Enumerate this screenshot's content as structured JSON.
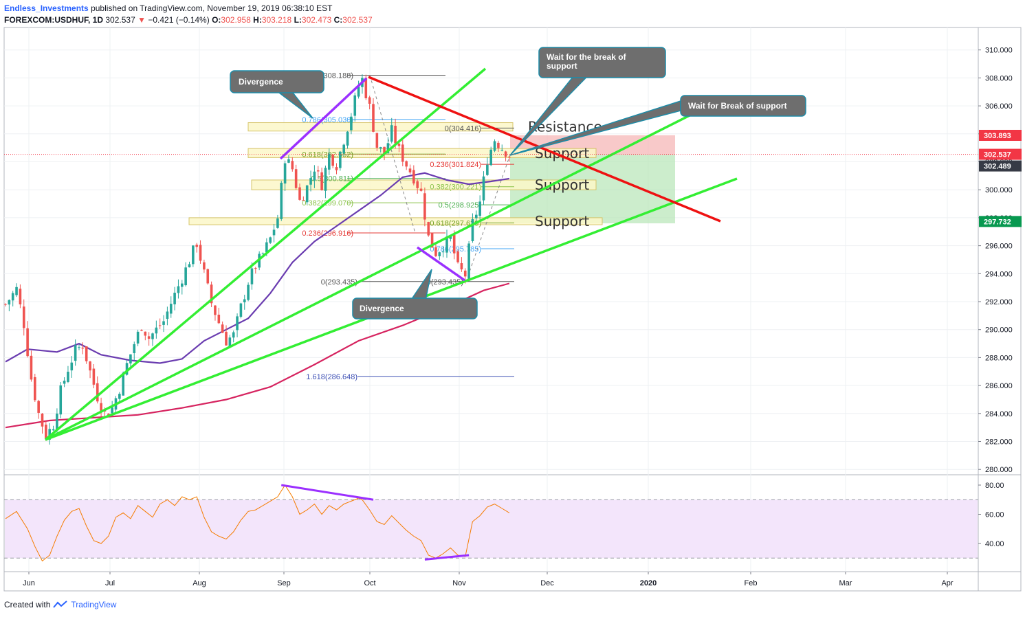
{
  "header": {
    "author": "Endless_Investments",
    "published": "published on TradingView.com, November 19, 2019 06:38:10 EST",
    "symbol": "FOREXCOM:USDHUF, 1D",
    "last": "302.537",
    "change": "−0.421 (−0.14%)",
    "o_label": "O:",
    "o": "302.958",
    "h_label": "H:",
    "h": "303.218",
    "l_label": "L:",
    "l": "302.473",
    "c_label": "C:",
    "c": "302.537"
  },
  "footer": {
    "created_with": "Created with",
    "brand": "TradingView"
  },
  "colors": {
    "up": "#26a69a",
    "down": "#ef5350",
    "trend_green": "#33ee33",
    "trend_red": "#ee1111",
    "ma_fast": "#6a3cb0",
    "ma_slow": "#d6235f",
    "divergence": "#9b30ff",
    "rsi": "#f57c00",
    "rsi_band": "#f3e5fb",
    "zone_fill": "#fbf7c8",
    "zone_border": "#d6c46a",
    "callout_fill": "#6e6e6e",
    "callout_border": "#1e8ca8"
  },
  "chart_data": {
    "type": "candlestick",
    "instrument": "FOREXCOM:USDHUF",
    "timeframe": "1D",
    "x_ticks": [
      "Jun",
      "Jul",
      "Aug",
      "Sep",
      "Oct",
      "Nov",
      "Dec",
      "2020",
      "Feb",
      "Mar",
      "Apr"
    ],
    "y_ticks": [
      "280.000",
      "282.000",
      "284.000",
      "286.000",
      "288.000",
      "290.000",
      "292.000",
      "294.000",
      "296.000",
      "298.000",
      "300.000",
      "302.000",
      "304.000",
      "306.000",
      "308.000",
      "310.000"
    ],
    "ylim": [
      279.6,
      311.4
    ],
    "price_tags": [
      {
        "value": 303.893,
        "text": "303.893",
        "color": "#f23645"
      },
      {
        "value": 302.537,
        "text": "302.537",
        "color": "#f23645"
      },
      {
        "value": 302.489,
        "text": "302.489",
        "color": "#363a45"
      },
      {
        "value": 297.732,
        "text": "297.732",
        "color": "#089950"
      }
    ],
    "close_path": [
      {
        "day": 0,
        "close": 291.8
      },
      {
        "day": 3,
        "close": 292.9
      },
      {
        "day": 5,
        "close": 290.4
      },
      {
        "day": 7,
        "close": 286.5
      },
      {
        "day": 9,
        "close": 284.0
      },
      {
        "day": 11,
        "close": 282.4
      },
      {
        "day": 13,
        "close": 283.2
      },
      {
        "day": 15,
        "close": 285.6
      },
      {
        "day": 17,
        "close": 287.2
      },
      {
        "day": 19,
        "close": 288.5
      },
      {
        "day": 21,
        "close": 288.9
      },
      {
        "day": 23,
        "close": 287.0
      },
      {
        "day": 25,
        "close": 285.2
      },
      {
        "day": 27,
        "close": 284.0
      },
      {
        "day": 29,
        "close": 284.4
      },
      {
        "day": 31,
        "close": 285.8
      },
      {
        "day": 33,
        "close": 287.5
      },
      {
        "day": 35,
        "close": 289.0
      },
      {
        "day": 37,
        "close": 290.3
      },
      {
        "day": 39,
        "close": 289.4
      },
      {
        "day": 41,
        "close": 290.0
      },
      {
        "day": 43,
        "close": 290.6
      },
      {
        "day": 45,
        "close": 291.9
      },
      {
        "day": 47,
        "close": 293.1
      },
      {
        "day": 49,
        "close": 294.3
      },
      {
        "day": 51,
        "close": 295.6
      },
      {
        "day": 52,
        "close": 296.2
      },
      {
        "day": 54,
        "close": 294.0
      },
      {
        "day": 56,
        "close": 291.9
      },
      {
        "day": 58,
        "close": 290.5
      },
      {
        "day": 60,
        "close": 289.2
      },
      {
        "day": 62,
        "close": 289.6
      },
      {
        "day": 64,
        "close": 291.6
      },
      {
        "day": 66,
        "close": 293.4
      },
      {
        "day": 68,
        "close": 294.6
      },
      {
        "day": 70,
        "close": 295.4
      },
      {
        "day": 72,
        "close": 296.5
      },
      {
        "day": 74,
        "close": 298.0
      },
      {
        "day": 76,
        "close": 302.3
      },
      {
        "day": 78,
        "close": 301.5
      },
      {
        "day": 80,
        "close": 299.2
      },
      {
        "day": 82,
        "close": 300.2
      },
      {
        "day": 84,
        "close": 301.6
      },
      {
        "day": 86,
        "close": 300.4
      },
      {
        "day": 88,
        "close": 302.5
      },
      {
        "day": 90,
        "close": 301.8
      },
      {
        "day": 92,
        "close": 303.6
      },
      {
        "day": 94,
        "close": 305.4
      },
      {
        "day": 96,
        "close": 307.4
      },
      {
        "day": 97,
        "close": 307.9
      },
      {
        "day": 99,
        "close": 305.9
      },
      {
        "day": 101,
        "close": 303.1
      },
      {
        "day": 103,
        "close": 302.6
      },
      {
        "day": 105,
        "close": 304.2
      },
      {
        "day": 107,
        "close": 302.8
      },
      {
        "day": 109,
        "close": 301.8
      },
      {
        "day": 111,
        "close": 300.9
      },
      {
        "day": 113,
        "close": 299.8
      },
      {
        "day": 115,
        "close": 296.6
      },
      {
        "day": 117,
        "close": 295.5
      },
      {
        "day": 119,
        "close": 296.0
      },
      {
        "day": 121,
        "close": 296.5
      },
      {
        "day": 123,
        "close": 294.4
      },
      {
        "day": 125,
        "close": 293.9
      },
      {
        "day": 127,
        "close": 297.6
      },
      {
        "day": 129,
        "close": 299.1
      },
      {
        "day": 131,
        "close": 302.2
      },
      {
        "day": 133,
        "close": 303.6
      },
      {
        "day": 135,
        "close": 303.0
      },
      {
        "day": 137,
        "close": 302.5
      }
    ],
    "moving_averages": [
      {
        "name": "MA fast",
        "points": [
          {
            "day": 0,
            "value": 287.7
          },
          {
            "day": 6,
            "value": 288.6
          },
          {
            "day": 14,
            "value": 288.4
          },
          {
            "day": 20,
            "value": 289.0
          },
          {
            "day": 26,
            "value": 288.2
          },
          {
            "day": 34,
            "value": 287.8
          },
          {
            "day": 42,
            "value": 287.6
          },
          {
            "day": 48,
            "value": 287.9
          },
          {
            "day": 54,
            "value": 289.2
          },
          {
            "day": 60,
            "value": 290.0
          },
          {
            "day": 66,
            "value": 290.8
          },
          {
            "day": 72,
            "value": 292.6
          },
          {
            "day": 78,
            "value": 294.8
          },
          {
            "day": 84,
            "value": 296.3
          },
          {
            "day": 90,
            "value": 297.4
          },
          {
            "day": 96,
            "value": 298.5
          },
          {
            "day": 102,
            "value": 299.6
          },
          {
            "day": 108,
            "value": 300.9
          },
          {
            "day": 114,
            "value": 301.2
          },
          {
            "day": 120,
            "value": 300.7
          },
          {
            "day": 126,
            "value": 300.4
          },
          {
            "day": 132,
            "value": 300.6
          },
          {
            "day": 137,
            "value": 300.8
          }
        ]
      },
      {
        "name": "MA slow",
        "points": [
          {
            "day": 0,
            "value": 283.0
          },
          {
            "day": 12,
            "value": 283.5
          },
          {
            "day": 24,
            "value": 283.7
          },
          {
            "day": 36,
            "value": 283.9
          },
          {
            "day": 48,
            "value": 284.4
          },
          {
            "day": 60,
            "value": 285.0
          },
          {
            "day": 72,
            "value": 285.9
          },
          {
            "day": 84,
            "value": 287.5
          },
          {
            "day": 96,
            "value": 289.2
          },
          {
            "day": 108,
            "value": 290.3
          },
          {
            "day": 120,
            "value": 291.6
          },
          {
            "day": 130,
            "value": 292.8
          },
          {
            "day": 137,
            "value": 293.3
          }
        ]
      }
    ],
    "fib_upper": [
      {
        "text": "1(308.188)",
        "value": 308.188,
        "color": "#555555"
      },
      {
        "text": "0.786(305.030)",
        "value": 305.03,
        "color": "#42a5f5"
      },
      {
        "text": "0.618(302.552)",
        "value": 302.552,
        "color": "#6e9e1e"
      },
      {
        "text": "0.5(300.811)",
        "value": 300.811,
        "color": "#4caf50"
      },
      {
        "text": "0.382(299.070)",
        "value": 299.07,
        "color": "#8bc34a"
      },
      {
        "text": "0.236(296.916)",
        "value": 296.916,
        "color": "#e53935"
      }
    ],
    "fib_lower": [
      {
        "text": "0(304.416)",
        "value": 304.416,
        "color": "#555555"
      },
      {
        "text": "0.236(301.824)",
        "value": 301.824,
        "color": "#e53935"
      },
      {
        "text": "0.382(300.221)",
        "value": 300.221,
        "color": "#8bc34a"
      },
      {
        "text": "0.5(298.925)",
        "value": 298.925,
        "color": "#4caf50"
      },
      {
        "text": "0.618(297.629)",
        "value": 297.629,
        "color": "#6e9e1e"
      },
      {
        "text": "0.786(295.785)",
        "value": 295.785,
        "color": "#42a5f5"
      },
      {
        "text": "0(293.435)",
        "value": 293.435,
        "color": "#555555"
      },
      {
        "text": "1.618(286.648)",
        "value": 286.648,
        "color": "#3f51b5"
      }
    ],
    "fib_base_label": {
      "text": "0(293.435)",
      "value": 293.435,
      "color": "#555555"
    },
    "zones": [
      {
        "label": "Resistance",
        "low": 304.2,
        "high": 304.8
      },
      {
        "label": "Support",
        "low": 302.3,
        "high": 302.95
      },
      {
        "label": "Support",
        "low": 300.0,
        "high": 300.7
      },
      {
        "label": "Support",
        "low": 297.5,
        "high": 298.0
      }
    ],
    "callouts": [
      {
        "text": "Divergence"
      },
      {
        "text": "Divergence"
      },
      {
        "text": "Wait for the break of",
        "text2": "support"
      },
      {
        "text": "Wait for Break of support"
      }
    ],
    "rsi": {
      "yticks": [
        "40.00",
        "60.00",
        "80.00"
      ],
      "ylim": [
        22,
        85
      ],
      "bands": [
        30,
        70
      ],
      "points": [
        {
          "day": 0,
          "value": 57
        },
        {
          "day": 3,
          "value": 62
        },
        {
          "day": 6,
          "value": 50
        },
        {
          "day": 8,
          "value": 38
        },
        {
          "day": 10,
          "value": 28
        },
        {
          "day": 12,
          "value": 32
        },
        {
          "day": 14,
          "value": 45
        },
        {
          "day": 16,
          "value": 56
        },
        {
          "day": 18,
          "value": 62
        },
        {
          "day": 20,
          "value": 64
        },
        {
          "day": 22,
          "value": 52
        },
        {
          "day": 24,
          "value": 42
        },
        {
          "day": 26,
          "value": 40
        },
        {
          "day": 28,
          "value": 45
        },
        {
          "day": 30,
          "value": 58
        },
        {
          "day": 32,
          "value": 61
        },
        {
          "day": 34,
          "value": 57
        },
        {
          "day": 36,
          "value": 66
        },
        {
          "day": 38,
          "value": 62
        },
        {
          "day": 40,
          "value": 58
        },
        {
          "day": 42,
          "value": 67
        },
        {
          "day": 44,
          "value": 70
        },
        {
          "day": 46,
          "value": 66
        },
        {
          "day": 48,
          "value": 72
        },
        {
          "day": 50,
          "value": 70
        },
        {
          "day": 52,
          "value": 72
        },
        {
          "day": 54,
          "value": 58
        },
        {
          "day": 56,
          "value": 48
        },
        {
          "day": 58,
          "value": 45
        },
        {
          "day": 60,
          "value": 43
        },
        {
          "day": 62,
          "value": 48
        },
        {
          "day": 64,
          "value": 56
        },
        {
          "day": 66,
          "value": 62
        },
        {
          "day": 68,
          "value": 63
        },
        {
          "day": 70,
          "value": 66
        },
        {
          "day": 72,
          "value": 69
        },
        {
          "day": 74,
          "value": 72
        },
        {
          "day": 76,
          "value": 80
        },
        {
          "day": 78,
          "value": 72
        },
        {
          "day": 80,
          "value": 60
        },
        {
          "day": 82,
          "value": 63
        },
        {
          "day": 84,
          "value": 67
        },
        {
          "day": 86,
          "value": 60
        },
        {
          "day": 88,
          "value": 66
        },
        {
          "day": 90,
          "value": 63
        },
        {
          "day": 92,
          "value": 67
        },
        {
          "day": 94,
          "value": 69
        },
        {
          "day": 96,
          "value": 71
        },
        {
          "day": 97,
          "value": 70
        },
        {
          "day": 99,
          "value": 63
        },
        {
          "day": 101,
          "value": 55
        },
        {
          "day": 103,
          "value": 53
        },
        {
          "day": 105,
          "value": 59
        },
        {
          "day": 107,
          "value": 54
        },
        {
          "day": 109,
          "value": 49
        },
        {
          "day": 111,
          "value": 45
        },
        {
          "day": 113,
          "value": 42
        },
        {
          "day": 115,
          "value": 32
        },
        {
          "day": 117,
          "value": 30
        },
        {
          "day": 119,
          "value": 33
        },
        {
          "day": 121,
          "value": 37
        },
        {
          "day": 123,
          "value": 32
        },
        {
          "day": 125,
          "value": 31
        },
        {
          "day": 127,
          "value": 55
        },
        {
          "day": 129,
          "value": 59
        },
        {
          "day": 131,
          "value": 65
        },
        {
          "day": 133,
          "value": 67
        },
        {
          "day": 135,
          "value": 64
        },
        {
          "day": 137,
          "value": 61
        }
      ]
    }
  }
}
